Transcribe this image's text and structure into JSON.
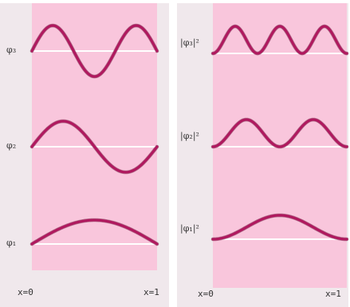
{
  "left": {
    "rows": [
      {
        "label": "φ₃",
        "n": 3,
        "squared": false
      },
      {
        "label": "φ₂",
        "n": 2,
        "squared": false
      },
      {
        "label": "φ₁",
        "n": 1,
        "squared": false
      }
    ],
    "x_start_label": "x=0",
    "x_end_label": "x=1"
  },
  "right": {
    "rows": [
      {
        "label": "|φ₃|²",
        "n": 3,
        "squared": true
      },
      {
        "label": "|φ₂|²",
        "n": 2,
        "squared": true
      },
      {
        "label": "|φ₁|²",
        "n": 1,
        "squared": true
      }
    ],
    "x_start_label": "x=0",
    "x_end_label": "x=1"
  },
  "colors": {
    "plot_bg": "#f9c6dc",
    "wave": "#b0195f",
    "baseline": "#ffffff",
    "panel": "#f0e8ec"
  }
}
